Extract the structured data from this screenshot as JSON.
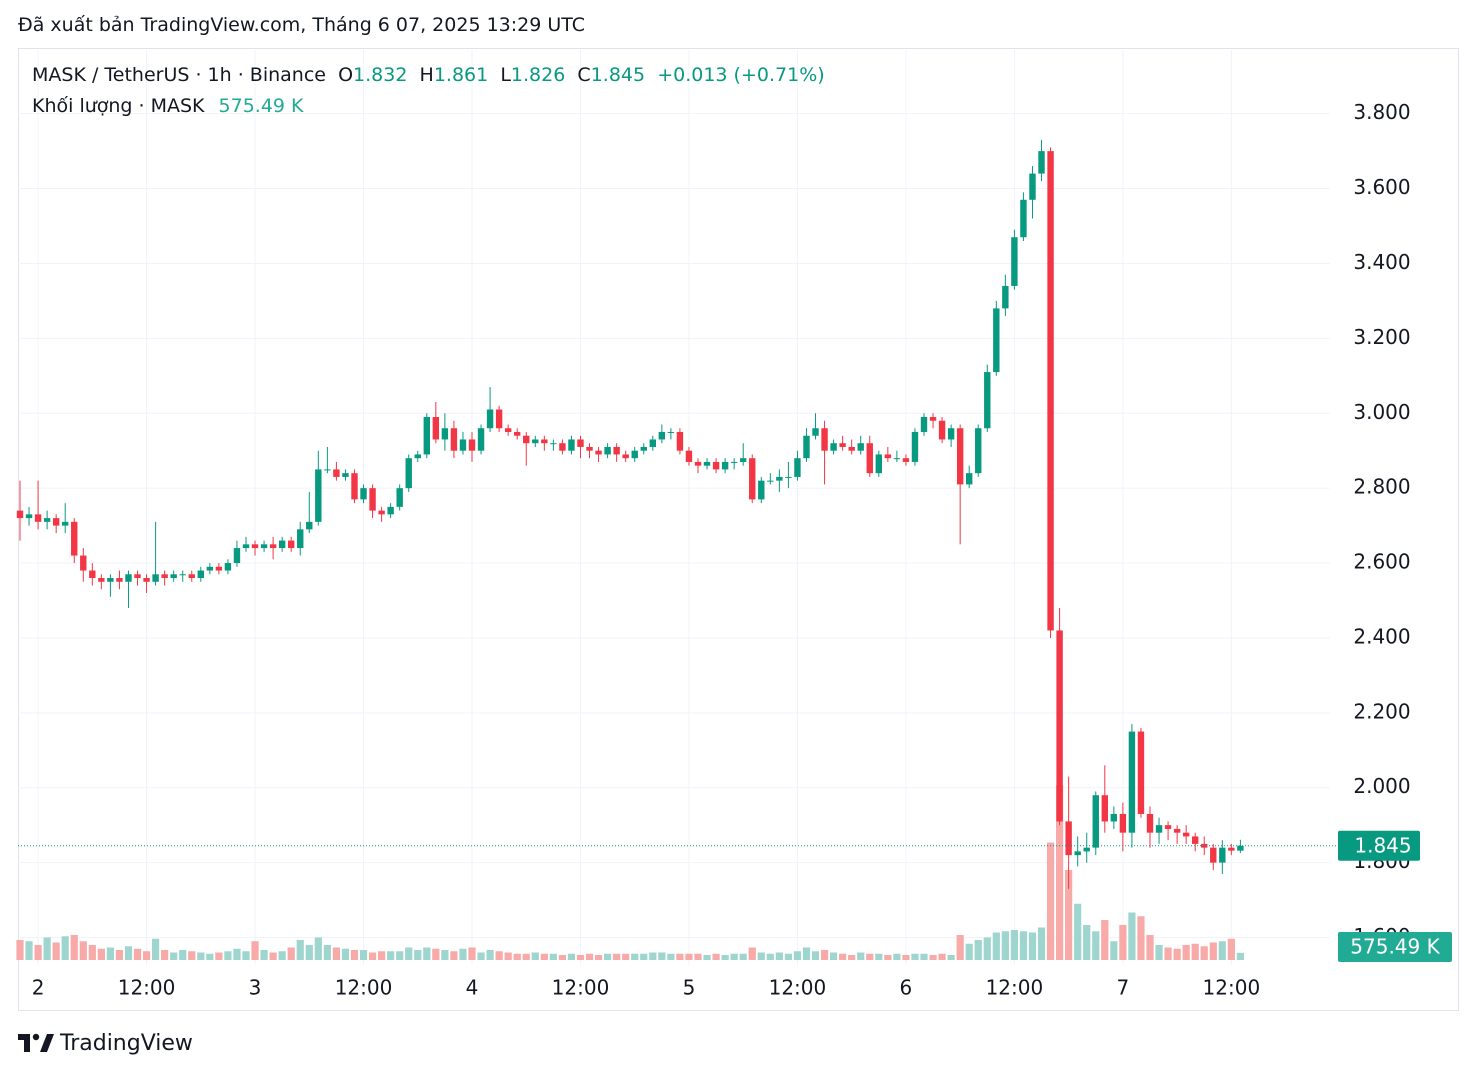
{
  "header": {
    "published": "Đã xuất bản TradingView.com, Tháng 6 07, 2025 13:29 UTC"
  },
  "footer": {
    "brand": "TradingView"
  },
  "chart_data": {
    "type": "candlestick",
    "title": "MASK / TetherUS · 1h · Binance",
    "ohlc_letters": [
      "O",
      "H",
      "L",
      "C"
    ],
    "change_label": "+0.013 (+0.71%)",
    "up_color": "#089981",
    "down_color": "#f23645",
    "up_volume_color": "#9ed6cf",
    "down_volume_color": "#f7aaa8",
    "grid": true,
    "ylim": [
      1.54,
      3.97
    ],
    "yticks": [
      {
        "value": 1.6,
        "label": "1.600"
      },
      {
        "value": 1.8,
        "label": "1.800"
      },
      {
        "value": 2.0,
        "label": "2.000"
      },
      {
        "value": 2.2,
        "label": "2.200"
      },
      {
        "value": 2.4,
        "label": "2.400"
      },
      {
        "value": 2.6,
        "label": "2.600"
      },
      {
        "value": 2.8,
        "label": "2.800"
      },
      {
        "value": 3.0,
        "label": "3.000"
      },
      {
        "value": 3.2,
        "label": "3.200"
      },
      {
        "value": 3.4,
        "label": "3.400"
      },
      {
        "value": 3.6,
        "label": "3.600"
      },
      {
        "value": 3.8,
        "label": "3.800"
      }
    ],
    "xticks": [
      {
        "value": 2,
        "label": "2"
      },
      {
        "value": 14,
        "label": "12:00"
      },
      {
        "value": 26,
        "label": "3"
      },
      {
        "value": 38,
        "label": "12:00"
      },
      {
        "value": 50,
        "label": "4"
      },
      {
        "value": 62,
        "label": "12:00"
      },
      {
        "value": 74,
        "label": "5"
      },
      {
        "value": 86,
        "label": "12:00"
      },
      {
        "value": 98,
        "label": "6"
      },
      {
        "value": 110,
        "label": "12:00"
      },
      {
        "value": 122,
        "label": "7"
      },
      {
        "value": 134,
        "label": "12:00"
      }
    ],
    "candles": [
      [
        2.74,
        2.82,
        2.66,
        2.72
      ],
      [
        2.72,
        2.75,
        2.7,
        2.73
      ],
      [
        2.73,
        2.82,
        2.69,
        2.71
      ],
      [
        2.71,
        2.74,
        2.69,
        2.72
      ],
      [
        2.72,
        2.73,
        2.68,
        2.7
      ],
      [
        2.7,
        2.76,
        2.68,
        2.71
      ],
      [
        2.71,
        2.72,
        2.6,
        2.62
      ],
      [
        2.62,
        2.64,
        2.55,
        2.58
      ],
      [
        2.58,
        2.6,
        2.54,
        2.56
      ],
      [
        2.56,
        2.57,
        2.53,
        2.55
      ],
      [
        2.55,
        2.57,
        2.51,
        2.56
      ],
      [
        2.56,
        2.58,
        2.53,
        2.55
      ],
      [
        2.55,
        2.58,
        2.48,
        2.57
      ],
      [
        2.57,
        2.58,
        2.54,
        2.56
      ],
      [
        2.56,
        2.57,
        2.52,
        2.55
      ],
      [
        2.55,
        2.71,
        2.54,
        2.57
      ],
      [
        2.57,
        2.58,
        2.54,
        2.56
      ],
      [
        2.56,
        2.58,
        2.55,
        2.57
      ],
      [
        2.57,
        2.58,
        2.55,
        2.57
      ],
      [
        2.57,
        2.58,
        2.55,
        2.56
      ],
      [
        2.56,
        2.59,
        2.55,
        2.58
      ],
      [
        2.58,
        2.6,
        2.57,
        2.59
      ],
      [
        2.59,
        2.6,
        2.57,
        2.58
      ],
      [
        2.58,
        2.61,
        2.57,
        2.6
      ],
      [
        2.6,
        2.66,
        2.59,
        2.64
      ],
      [
        2.64,
        2.67,
        2.63,
        2.65
      ],
      [
        2.65,
        2.66,
        2.62,
        2.64
      ],
      [
        2.64,
        2.66,
        2.63,
        2.65
      ],
      [
        2.65,
        2.67,
        2.61,
        2.64
      ],
      [
        2.64,
        2.67,
        2.63,
        2.66
      ],
      [
        2.66,
        2.67,
        2.63,
        2.64
      ],
      [
        2.64,
        2.71,
        2.62,
        2.69
      ],
      [
        2.69,
        2.79,
        2.68,
        2.71
      ],
      [
        2.71,
        2.9,
        2.7,
        2.85
      ],
      [
        2.85,
        2.91,
        2.84,
        2.85
      ],
      [
        2.85,
        2.87,
        2.82,
        2.83
      ],
      [
        2.83,
        2.85,
        2.82,
        2.84
      ],
      [
        2.84,
        2.85,
        2.76,
        2.77
      ],
      [
        2.77,
        2.81,
        2.76,
        2.8
      ],
      [
        2.8,
        2.81,
        2.72,
        2.74
      ],
      [
        2.74,
        2.75,
        2.71,
        2.73
      ],
      [
        2.73,
        2.76,
        2.72,
        2.75
      ],
      [
        2.75,
        2.81,
        2.74,
        2.8
      ],
      [
        2.8,
        2.89,
        2.79,
        2.88
      ],
      [
        2.88,
        2.9,
        2.87,
        2.89
      ],
      [
        2.89,
        3.0,
        2.88,
        2.99
      ],
      [
        2.99,
        3.03,
        2.92,
        2.93
      ],
      [
        2.93,
        3.0,
        2.9,
        2.96
      ],
      [
        2.96,
        2.98,
        2.88,
        2.9
      ],
      [
        2.9,
        2.95,
        2.89,
        2.93
      ],
      [
        2.93,
        2.95,
        2.87,
        2.9
      ],
      [
        2.9,
        2.97,
        2.89,
        2.96
      ],
      [
        2.96,
        3.07,
        2.95,
        3.01
      ],
      [
        3.01,
        3.02,
        2.95,
        2.96
      ],
      [
        2.96,
        2.97,
        2.94,
        2.95
      ],
      [
        2.95,
        2.96,
        2.93,
        2.94
      ],
      [
        2.94,
        2.95,
        2.86,
        2.92
      ],
      [
        2.92,
        2.94,
        2.91,
        2.93
      ],
      [
        2.93,
        2.94,
        2.9,
        2.92
      ],
      [
        2.92,
        2.93,
        2.9,
        2.92
      ],
      [
        2.92,
        2.93,
        2.89,
        2.9
      ],
      [
        2.9,
        2.94,
        2.89,
        2.93
      ],
      [
        2.93,
        2.94,
        2.88,
        2.91
      ],
      [
        2.91,
        2.92,
        2.88,
        2.9
      ],
      [
        2.9,
        2.91,
        2.87,
        2.89
      ],
      [
        2.89,
        2.92,
        2.88,
        2.91
      ],
      [
        2.91,
        2.92,
        2.87,
        2.89
      ],
      [
        2.89,
        2.9,
        2.87,
        2.88
      ],
      [
        2.88,
        2.91,
        2.87,
        2.9
      ],
      [
        2.9,
        2.92,
        2.89,
        2.91
      ],
      [
        2.91,
        2.94,
        2.9,
        2.93
      ],
      [
        2.93,
        2.97,
        2.92,
        2.95
      ],
      [
        2.95,
        2.96,
        2.93,
        2.95
      ],
      [
        2.95,
        2.96,
        2.89,
        2.9
      ],
      [
        2.9,
        2.91,
        2.86,
        2.87
      ],
      [
        2.87,
        2.88,
        2.84,
        2.86
      ],
      [
        2.86,
        2.88,
        2.85,
        2.87
      ],
      [
        2.87,
        2.88,
        2.84,
        2.85
      ],
      [
        2.85,
        2.88,
        2.84,
        2.87
      ],
      [
        2.87,
        2.88,
        2.85,
        2.87
      ],
      [
        2.87,
        2.92,
        2.86,
        2.88
      ],
      [
        2.88,
        2.89,
        2.76,
        2.77
      ],
      [
        2.77,
        2.83,
        2.76,
        2.82
      ],
      [
        2.82,
        2.84,
        2.81,
        2.82
      ],
      [
        2.82,
        2.85,
        2.79,
        2.83
      ],
      [
        2.83,
        2.87,
        2.8,
        2.83
      ],
      [
        2.83,
        2.9,
        2.82,
        2.88
      ],
      [
        2.88,
        2.96,
        2.87,
        2.94
      ],
      [
        2.94,
        3.0,
        2.93,
        2.96
      ],
      [
        2.96,
        2.98,
        2.81,
        2.9
      ],
      [
        2.9,
        2.93,
        2.89,
        2.92
      ],
      [
        2.92,
        2.94,
        2.9,
        2.91
      ],
      [
        2.91,
        2.93,
        2.89,
        2.9
      ],
      [
        2.9,
        2.94,
        2.89,
        2.92
      ],
      [
        2.92,
        2.94,
        2.83,
        2.84
      ],
      [
        2.84,
        2.9,
        2.83,
        2.89
      ],
      [
        2.89,
        2.91,
        2.87,
        2.88
      ],
      [
        2.88,
        2.9,
        2.87,
        2.88
      ],
      [
        2.88,
        2.89,
        2.86,
        2.87
      ],
      [
        2.87,
        2.96,
        2.86,
        2.95
      ],
      [
        2.95,
        3.0,
        2.94,
        2.99
      ],
      [
        2.99,
        3.0,
        2.96,
        2.98
      ],
      [
        2.98,
        2.99,
        2.92,
        2.93
      ],
      [
        2.93,
        2.97,
        2.91,
        2.96
      ],
      [
        2.96,
        2.97,
        2.65,
        2.81
      ],
      [
        2.81,
        2.86,
        2.8,
        2.84
      ],
      [
        2.84,
        2.97,
        2.83,
        2.96
      ],
      [
        2.96,
        3.13,
        2.95,
        3.11
      ],
      [
        3.11,
        3.3,
        3.1,
        3.28
      ],
      [
        3.28,
        3.37,
        3.26,
        3.34
      ],
      [
        3.34,
        3.49,
        3.33,
        3.47
      ],
      [
        3.47,
        3.59,
        3.46,
        3.57
      ],
      [
        3.57,
        3.66,
        3.52,
        3.64
      ],
      [
        3.64,
        3.73,
        3.62,
        3.7
      ],
      [
        3.7,
        3.71,
        2.4,
        2.42
      ],
      [
        2.42,
        2.48,
        1.9,
        1.91
      ],
      [
        1.91,
        2.03,
        1.73,
        1.82
      ],
      [
        1.82,
        1.87,
        1.79,
        1.83
      ],
      [
        1.83,
        1.88,
        1.8,
        1.84
      ],
      [
        1.84,
        1.99,
        1.82,
        1.98
      ],
      [
        1.98,
        2.06,
        1.88,
        1.91
      ],
      [
        1.91,
        1.95,
        1.89,
        1.93
      ],
      [
        1.93,
        1.96,
        1.83,
        1.88
      ],
      [
        1.88,
        2.17,
        1.84,
        2.15
      ],
      [
        2.15,
        2.16,
        1.92,
        1.93
      ],
      [
        1.93,
        1.95,
        1.84,
        1.88
      ],
      [
        1.88,
        1.92,
        1.85,
        1.9
      ],
      [
        1.9,
        1.91,
        1.86,
        1.89
      ],
      [
        1.89,
        1.9,
        1.85,
        1.88
      ],
      [
        1.88,
        1.9,
        1.85,
        1.87
      ],
      [
        1.87,
        1.88,
        1.83,
        1.85
      ],
      [
        1.85,
        1.87,
        1.82,
        1.84
      ],
      [
        1.84,
        1.85,
        1.78,
        1.8
      ],
      [
        1.8,
        1.86,
        1.77,
        1.84
      ],
      [
        1.84,
        1.85,
        1.82,
        1.832
      ],
      [
        1.832,
        1.861,
        1.826,
        1.845
      ]
    ],
    "volume": {
      "name": "Khối lượng · MASK",
      "last_label": "575.49 K",
      "values": [
        1600000,
        1500000,
        1200000,
        1800000,
        1400000,
        1900000,
        2000000,
        1500000,
        1200000,
        900000,
        1000000,
        800000,
        1100000,
        900000,
        700000,
        1700000,
        800000,
        600000,
        800000,
        700000,
        600000,
        500000,
        600000,
        700000,
        900000,
        700000,
        1500000,
        800000,
        600000,
        700000,
        1000000,
        1600000,
        1200000,
        1800000,
        1200000,
        1000000,
        900000,
        800000,
        800000,
        600000,
        700000,
        700000,
        700000,
        1000000,
        800000,
        1000000,
        900000,
        800000,
        700000,
        900000,
        1000000,
        600000,
        800000,
        700000,
        600000,
        500000,
        500000,
        600000,
        500000,
        500000,
        400000,
        500000,
        400000,
        500000,
        400000,
        500000,
        500000,
        500000,
        500000,
        500000,
        600000,
        600000,
        500000,
        500000,
        500000,
        500000,
        400000,
        500000,
        400000,
        500000,
        500000,
        1000000,
        600000,
        500000,
        600000,
        500000,
        700000,
        1000000,
        700000,
        800000,
        600000,
        500000,
        400000,
        600000,
        500000,
        500000,
        400000,
        500000,
        400000,
        500000,
        500000,
        400000,
        500000,
        400000,
        2000000,
        1300000,
        1600000,
        1800000,
        2200000,
        2300000,
        2400000,
        2300000,
        2200000,
        2600000,
        9400000,
        14000000,
        7200000,
        4500000,
        2800000,
        2300000,
        3200000,
        1500000,
        2800000,
        3800000,
        3500000,
        2000000,
        1200000,
        1000000,
        900000,
        1200000,
        1300000,
        1100000,
        1400000,
        1500000,
        1700000,
        575490
      ]
    }
  }
}
